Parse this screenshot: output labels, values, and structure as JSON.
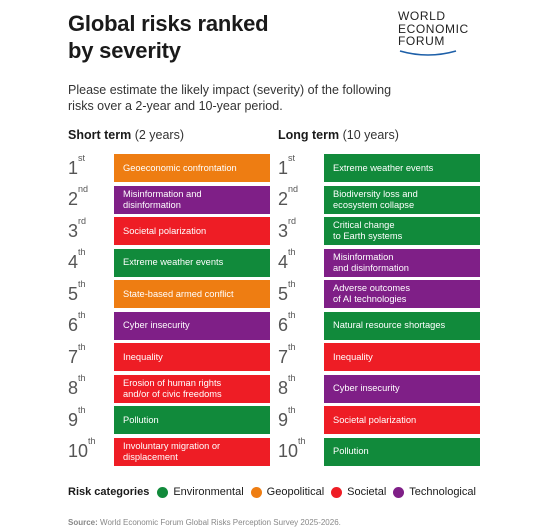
{
  "title": {
    "line1": "Global risks ranked",
    "line2": "by severity"
  },
  "logo": {
    "line1": "WORLD",
    "line2": "ECONOMIC",
    "line3": "FORUM"
  },
  "subtitle": {
    "line1": "Please estimate the likely impact (severity) of the following",
    "line2": "risks over a 2-year and 10-year period."
  },
  "short_term": {
    "heading": "Short term",
    "period": "(2 years)",
    "items": [
      {
        "rank": "1",
        "suffix": "st",
        "line1": "Geoeconomic confrontation",
        "line2": "",
        "category": "geo"
      },
      {
        "rank": "2",
        "suffix": "nd",
        "line1": "Misinformation and",
        "line2": "disinformation",
        "category": "tech"
      },
      {
        "rank": "3",
        "suffix": "rd",
        "line1": "Societal polarization",
        "line2": "",
        "category": "soc"
      },
      {
        "rank": "4",
        "suffix": "th",
        "line1": "Extreme weather events",
        "line2": "",
        "category": "env"
      },
      {
        "rank": "5",
        "suffix": "th",
        "line1": "State-based armed conflict",
        "line2": "",
        "category": "geo"
      },
      {
        "rank": "6",
        "suffix": "th",
        "line1": "Cyber insecurity",
        "line2": "",
        "category": "tech"
      },
      {
        "rank": "7",
        "suffix": "th",
        "line1": "Inequality",
        "line2": "",
        "category": "soc"
      },
      {
        "rank": "8",
        "suffix": "th",
        "line1": "Erosion of human rights",
        "line2": "and/or of civic freedoms",
        "category": "soc"
      },
      {
        "rank": "9",
        "suffix": "th",
        "line1": "Pollution",
        "line2": "",
        "category": "env"
      },
      {
        "rank": "10",
        "suffix": "th",
        "line1": "Involuntary migration or",
        "line2": "displacement",
        "category": "soc"
      }
    ]
  },
  "long_term": {
    "heading": "Long term",
    "period": "(10 years)",
    "items": [
      {
        "rank": "1",
        "suffix": "st",
        "line1": "Extreme weather events",
        "line2": "",
        "category": "env"
      },
      {
        "rank": "2",
        "suffix": "nd",
        "line1": "Biodiversity loss and",
        "line2": "ecosystem collapse",
        "category": "env"
      },
      {
        "rank": "3",
        "suffix": "rd",
        "line1": "Critical change",
        "line2": "to Earth systems",
        "category": "env"
      },
      {
        "rank": "4",
        "suffix": "th",
        "line1": "Misinformation",
        "line2": "and disinformation",
        "category": "tech"
      },
      {
        "rank": "5",
        "suffix": "th",
        "line1": "Adverse outcomes",
        "line2": "of AI technologies",
        "category": "tech"
      },
      {
        "rank": "6",
        "suffix": "th",
        "line1": "Natural resource shortages",
        "line2": "",
        "category": "env"
      },
      {
        "rank": "7",
        "suffix": "th",
        "line1": "Inequality",
        "line2": "",
        "category": "soc"
      },
      {
        "rank": "8",
        "suffix": "th",
        "line1": "Cyber insecurity",
        "line2": "",
        "category": "tech"
      },
      {
        "rank": "9",
        "suffix": "th",
        "line1": "Societal polarization",
        "line2": "",
        "category": "soc"
      },
      {
        "rank": "10",
        "suffix": "th",
        "line1": "Pollution",
        "line2": "",
        "category": "env"
      }
    ]
  },
  "legend": {
    "title": "Risk categories",
    "items": [
      {
        "label": "Environmental",
        "color": "#118a3b"
      },
      {
        "label": "Geopolitical",
        "color": "#ee7d12"
      },
      {
        "label": "Societal",
        "color": "#ee1d25"
      },
      {
        "label": "Technological",
        "color": "#7f1f87"
      }
    ]
  },
  "source": {
    "label": "Source:",
    "text": "World Economic Forum Global Risks Perception Survey 2025-2026."
  },
  "colors": {
    "env": "#118a3b",
    "geo": "#ee7d12",
    "soc": "#ee1d25",
    "tech": "#7f1f87"
  }
}
